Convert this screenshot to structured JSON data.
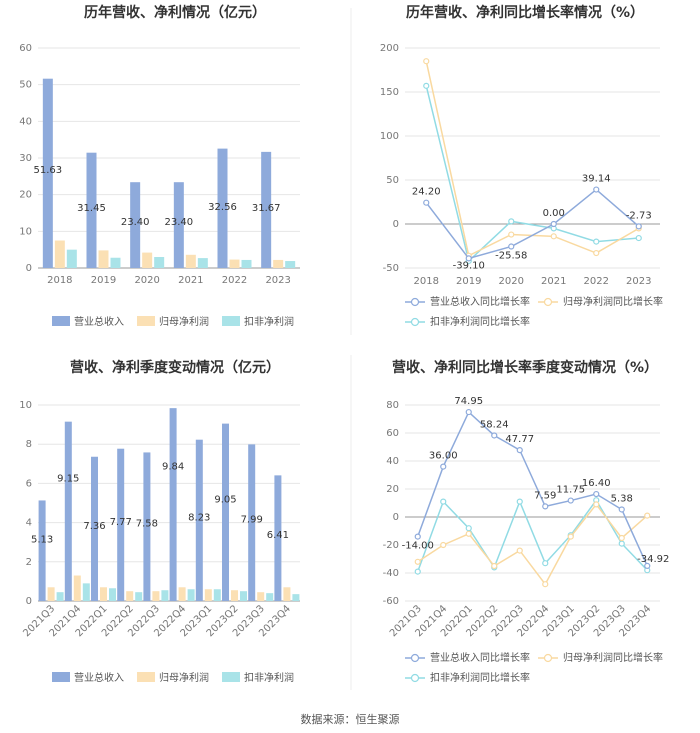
{
  "source": "数据来源：恒生聚源",
  "colors": {
    "rev": "#8eaadb",
    "net": "#fbe0b4",
    "ded": "#a9e3e8",
    "line_rev": "#8eaadb",
    "line_net": "#f9d9a0",
    "line_ded": "#91dbe4"
  },
  "chart_data": [
    {
      "type": "bar",
      "title": "历年营收、净利情况（亿元）",
      "categories": [
        "2018",
        "2019",
        "2020",
        "2021",
        "2022",
        "2023"
      ],
      "ylim": [
        0,
        60
      ],
      "yticks": [
        0,
        10,
        20,
        30,
        40,
        50,
        60
      ],
      "series": [
        {
          "name": "营业总收入",
          "values": [
            51.63,
            31.45,
            23.4,
            23.4,
            32.56,
            31.67
          ],
          "labels": [
            "51.63",
            "31.45",
            "23.40",
            "23.40",
            "32.56",
            "31.67"
          ]
        },
        {
          "name": "归母净利润",
          "values": [
            7.5,
            4.8,
            4.2,
            3.6,
            2.3,
            2.2
          ]
        },
        {
          "name": "扣非净利润",
          "values": [
            5.0,
            2.8,
            3.0,
            2.7,
            2.2,
            1.9
          ]
        }
      ]
    },
    {
      "type": "line",
      "title": "历年营收、净利同比增长率情况（%）",
      "categories": [
        "2018",
        "2019",
        "2020",
        "2021",
        "2022",
        "2023"
      ],
      "ylim": [
        -50,
        200
      ],
      "yticks": [
        -50,
        0,
        50,
        100,
        150,
        200
      ],
      "series": [
        {
          "name": "营业总收入同比增长率",
          "values": [
            24.2,
            -39.1,
            -25.58,
            0.0,
            39.14,
            -2.73
          ],
          "labels": [
            "24.20",
            "-39.10",
            "-25.58",
            "0.00",
            "39.14",
            "-2.73"
          ]
        },
        {
          "name": "归母净利润同比增长率",
          "values": [
            185,
            -36,
            -12,
            -14,
            -33,
            -5
          ]
        },
        {
          "name": "扣非净利润同比增长率",
          "values": [
            157,
            -42,
            3,
            -5,
            -20,
            -16
          ]
        }
      ]
    },
    {
      "type": "bar",
      "title": "营收、净利季度变动情况（亿元）",
      "categories": [
        "2021Q3",
        "2021Q4",
        "2022Q1",
        "2022Q2",
        "2022Q3",
        "2022Q4",
        "2023Q1",
        "2023Q2",
        "2023Q3",
        "2023Q4"
      ],
      "ylim": [
        0,
        10
      ],
      "yticks": [
        0,
        2,
        4,
        6,
        8,
        10
      ],
      "series": [
        {
          "name": "营业总收入",
          "values": [
            5.13,
            9.15,
            7.36,
            7.77,
            7.58,
            9.84,
            8.23,
            9.05,
            7.99,
            6.41
          ],
          "labels": [
            "5.13",
            "9.15",
            "7.36",
            "7.77",
            "7.58",
            "9.84",
            "8.23",
            "9.05",
            "7.99",
            "6.41"
          ]
        },
        {
          "name": "归母净利润",
          "values": [
            0.7,
            1.3,
            0.7,
            0.5,
            0.5,
            0.7,
            0.6,
            0.55,
            0.45,
            0.7
          ]
        },
        {
          "name": "扣非净利润",
          "values": [
            0.45,
            0.9,
            0.65,
            0.45,
            0.55,
            0.6,
            0.6,
            0.5,
            0.4,
            0.35
          ]
        }
      ]
    },
    {
      "type": "line",
      "title": "营收、净利同比增长率季度变动情况（%）",
      "categories": [
        "2021Q3",
        "2021Q4",
        "2022Q1",
        "2022Q2",
        "2022Q3",
        "2022Q4",
        "2023Q1",
        "2023Q2",
        "2023Q3",
        "2023Q4"
      ],
      "ylim": [
        -60,
        80
      ],
      "yticks": [
        -60,
        -40,
        -20,
        0,
        20,
        40,
        60,
        80
      ],
      "series": [
        {
          "name": "营业总收入同比增长率",
          "values": [
            -14.0,
            36.0,
            74.95,
            58.24,
            47.77,
            7.59,
            11.75,
            16.4,
            5.38,
            -34.92
          ],
          "labels": [
            "-14.00",
            "36.00",
            "74.95",
            "58.24",
            "47.77",
            "7.59",
            "11.75",
            "16.40",
            "5.38",
            "-34.92"
          ]
        },
        {
          "name": "归母净利润同比增长率",
          "values": [
            -32,
            -20,
            -12,
            -35,
            -24,
            -48,
            -14,
            9,
            -15,
            1
          ]
        },
        {
          "name": "扣非净利润同比增长率",
          "values": [
            -39,
            11,
            -8,
            -36,
            11,
            -33,
            -13,
            12,
            -19,
            -38
          ]
        }
      ]
    }
  ]
}
